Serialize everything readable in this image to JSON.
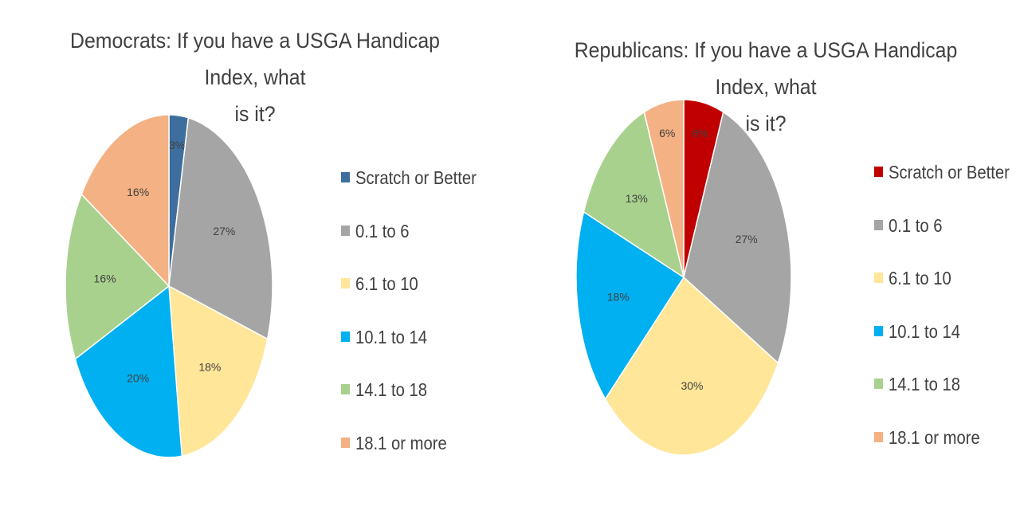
{
  "chart_data": [
    {
      "type": "pie",
      "title": "Democrats: If you have a USGA Handicap Index, what is it?",
      "title_lines": [
        "Democrats: If you have a USGA Handicap Index, what",
        "is it?"
      ],
      "categories": [
        "Scratch or Better",
        "0.1 to 6",
        "6.1 to 10",
        "10.1 to 14",
        "14.1 to 18",
        "18.1 or more"
      ],
      "values": [
        3,
        27,
        18,
        20,
        16,
        16
      ],
      "data_labels": [
        "3%",
        "27%",
        "18%",
        "20%",
        "16%",
        "16%"
      ],
      "colors": [
        "#3E6E9E",
        "#A5A5A5",
        "#FFE699",
        "#00B0F0",
        "#A9D18E",
        "#F4B183"
      ],
      "legend": "right"
    },
    {
      "type": "pie",
      "title": "Republicans: If you have a USGA Handicap Index, what is it?",
      "title_lines": [
        "Republicans: If you have a USGA Handicap Index, what",
        "is it?"
      ],
      "categories": [
        "Scratch or Better",
        "0.1 to 6",
        "6.1 to 10",
        "10.1 to 14",
        "14.1 to 18",
        "18.1 or more"
      ],
      "values": [
        6,
        27,
        30,
        18,
        13,
        6
      ],
      "data_labels": [
        "6%",
        "27%",
        "30%",
        "18%",
        "13%",
        "6%"
      ],
      "colors": [
        "#C00000",
        "#A5A5A5",
        "#FFE699",
        "#00B0F0",
        "#A9D18E",
        "#F4B183"
      ],
      "legend": "right"
    }
  ]
}
